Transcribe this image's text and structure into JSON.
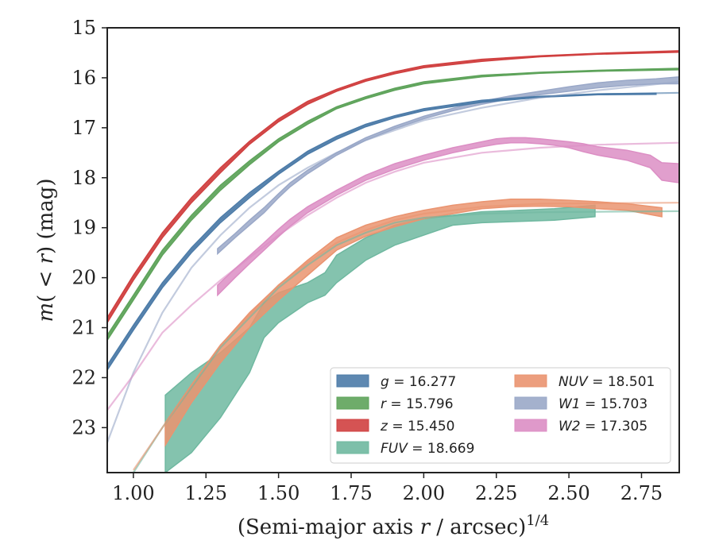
{
  "chart_data": {
    "type": "line",
    "xlabel": "(Semi-major axis r / arcsec)",
    "xlabel_parts": {
      "before": "(Semi-major axis ",
      "var": "r",
      "after": " / arcsec)",
      "sup": "1/4"
    },
    "ylabel": "m(< r) (mag)",
    "ylabel_parts": {
      "m": "m",
      "paren": "(",
      "lt": " < ",
      "r": "r",
      "close": ")",
      "unit": " (mag)"
    },
    "xlim": [
      0.91,
      2.88
    ],
    "ylim": [
      23.9,
      15.0
    ],
    "y_inverted": true,
    "xticks": [
      "1.00",
      "1.25",
      "1.50",
      "1.75",
      "2.00",
      "2.25",
      "2.50",
      "2.75"
    ],
    "xtick_values": [
      1.0,
      1.25,
      1.5,
      1.75,
      2.0,
      2.25,
      2.5,
      2.75
    ],
    "yticks": [
      "15",
      "16",
      "17",
      "18",
      "19",
      "20",
      "21",
      "22",
      "23"
    ],
    "ytick_values": [
      15,
      16,
      17,
      18,
      19,
      20,
      21,
      22,
      23
    ],
    "grid": false,
    "legend_position": "bottom-right",
    "series": [
      {
        "name": "g = 16.277",
        "var": "g",
        "value": "16.277",
        "color": "#4c7ba8",
        "model_x": [
          0.91,
          1.0,
          1.1,
          1.2,
          1.3,
          1.4,
          1.5,
          1.6,
          1.7,
          1.8,
          1.9,
          2.0,
          2.2,
          2.4,
          2.6,
          2.88
        ],
        "model_y": [
          21.8,
          21.0,
          20.15,
          19.45,
          18.85,
          18.35,
          17.9,
          17.5,
          17.2,
          16.95,
          16.78,
          16.64,
          16.47,
          16.38,
          16.33,
          16.3
        ],
        "band_x": [
          0.91,
          1.0,
          1.1,
          1.2,
          1.3,
          1.4,
          1.5,
          1.6,
          1.7,
          1.8,
          1.9,
          2.0,
          2.2,
          2.4,
          2.6,
          2.8
        ],
        "band_lo": [
          21.75,
          20.95,
          20.1,
          19.4,
          18.8,
          18.3,
          17.87,
          17.47,
          17.17,
          16.93,
          16.76,
          16.62,
          16.45,
          16.37,
          16.32,
          16.31
        ],
        "band_hi": [
          21.85,
          21.05,
          20.2,
          19.5,
          18.9,
          18.4,
          17.93,
          17.53,
          17.23,
          16.98,
          16.8,
          16.66,
          16.49,
          16.39,
          16.34,
          16.33
        ]
      },
      {
        "name": "r = 15.796",
        "var": "r",
        "value": "15.796",
        "color": "#5ea35a",
        "model_x": [
          0.91,
          1.0,
          1.1,
          1.2,
          1.3,
          1.4,
          1.5,
          1.6,
          1.7,
          1.8,
          1.9,
          2.0,
          2.2,
          2.4,
          2.6,
          2.88
        ],
        "model_y": [
          21.2,
          20.4,
          19.5,
          18.8,
          18.2,
          17.7,
          17.25,
          16.9,
          16.6,
          16.4,
          16.23,
          16.1,
          15.96,
          15.9,
          15.86,
          15.82
        ],
        "band_x": [
          0.91,
          1.0,
          1.1,
          1.2,
          1.3,
          1.4,
          1.5,
          1.6,
          1.7,
          1.8,
          1.9,
          2.0,
          2.2,
          2.4,
          2.6,
          2.88
        ],
        "band_lo": [
          21.15,
          20.35,
          19.45,
          18.75,
          18.15,
          17.66,
          17.22,
          16.87,
          16.58,
          16.38,
          16.21,
          16.08,
          15.95,
          15.89,
          15.85,
          15.81
        ],
        "band_hi": [
          21.25,
          20.45,
          19.55,
          18.85,
          18.25,
          17.74,
          17.28,
          16.93,
          16.62,
          16.42,
          16.25,
          16.12,
          15.98,
          15.91,
          15.87,
          15.84
        ]
      },
      {
        "name": "z = 15.450",
        "var": "z",
        "value": "15.450",
        "color": "#d04040",
        "model_x": [
          0.91,
          1.0,
          1.1,
          1.2,
          1.3,
          1.4,
          1.5,
          1.6,
          1.7,
          1.8,
          1.9,
          2.0,
          2.2,
          2.4,
          2.6,
          2.88
        ],
        "model_y": [
          20.85,
          20.0,
          19.15,
          18.45,
          17.85,
          17.3,
          16.85,
          16.5,
          16.25,
          16.05,
          15.9,
          15.78,
          15.65,
          15.57,
          15.52,
          15.47
        ],
        "band_x": [
          0.91,
          1.0,
          1.1,
          1.2,
          1.3,
          1.4,
          1.5,
          1.6,
          1.7,
          1.8,
          1.9,
          2.0,
          2.2,
          2.4,
          2.6,
          2.88
        ],
        "band_lo": [
          20.8,
          19.95,
          19.1,
          18.4,
          17.8,
          17.27,
          16.82,
          16.47,
          16.23,
          16.03,
          15.88,
          15.76,
          15.63,
          15.56,
          15.51,
          15.46
        ],
        "band_hi": [
          20.9,
          20.05,
          19.2,
          18.5,
          17.9,
          17.33,
          16.88,
          16.53,
          16.27,
          16.07,
          15.92,
          15.8,
          15.67,
          15.58,
          15.53,
          15.49
        ]
      },
      {
        "name": "FUV = 18.669",
        "var": "FUV",
        "value": "18.669",
        "color": "#6fb8a0",
        "model_x": [
          1.0,
          1.1,
          1.2,
          1.3,
          1.4,
          1.5,
          1.6,
          1.7,
          1.8,
          1.9,
          2.0,
          2.2,
          2.4,
          2.6,
          2.88
        ],
        "model_y": [
          23.9,
          23.0,
          22.2,
          21.4,
          20.8,
          20.2,
          19.75,
          19.35,
          19.1,
          18.9,
          18.8,
          18.72,
          18.69,
          18.68,
          18.67
        ],
        "band_x": [
          1.11,
          1.2,
          1.3,
          1.4,
          1.45,
          1.5,
          1.6,
          1.66,
          1.7,
          1.8,
          1.9,
          2.0,
          2.1,
          2.2,
          2.3,
          2.45,
          2.59
        ],
        "band_lo": [
          23.9,
          23.5,
          22.8,
          21.9,
          21.2,
          20.9,
          20.5,
          20.35,
          20.1,
          19.65,
          19.35,
          19.15,
          18.95,
          18.9,
          18.88,
          18.85,
          18.78
        ],
        "band_hi": [
          22.35,
          21.9,
          21.5,
          21.0,
          20.5,
          20.3,
          20.1,
          19.9,
          19.55,
          19.2,
          18.95,
          18.82,
          18.75,
          18.68,
          18.66,
          18.62,
          18.55
        ]
      },
      {
        "name": "NUV = 18.501",
        "var": "NUV",
        "value": "18.501",
        "color": "#ea9470",
        "model_x": [
          1.0,
          1.1,
          1.2,
          1.3,
          1.4,
          1.5,
          1.6,
          1.7,
          1.8,
          1.9,
          2.0,
          2.2,
          2.4,
          2.6,
          2.88
        ],
        "model_y": [
          23.85,
          23.0,
          22.15,
          21.35,
          20.75,
          20.15,
          19.7,
          19.3,
          19.05,
          18.85,
          18.72,
          18.58,
          18.52,
          18.51,
          18.5
        ],
        "band_x": [
          1.11,
          1.2,
          1.3,
          1.4,
          1.5,
          1.6,
          1.7,
          1.8,
          1.9,
          2.0,
          2.1,
          2.2,
          2.3,
          2.4,
          2.5,
          2.6,
          2.7,
          2.82
        ],
        "band_lo": [
          23.35,
          22.5,
          21.7,
          21.0,
          20.45,
          19.95,
          19.45,
          19.17,
          18.98,
          18.82,
          18.72,
          18.62,
          18.58,
          18.57,
          18.58,
          18.62,
          18.65,
          18.78
        ],
        "band_hi": [
          22.9,
          22.15,
          21.35,
          20.7,
          20.15,
          19.65,
          19.2,
          18.95,
          18.78,
          18.65,
          18.55,
          18.48,
          18.43,
          18.43,
          18.45,
          18.48,
          18.52,
          18.6
        ]
      },
      {
        "name": "W1 = 15.703",
        "var": "W1",
        "value": "15.703",
        "color": "#9aa8c8",
        "model_x": [
          0.91,
          1.0,
          1.1,
          1.2,
          1.3,
          1.4,
          1.5,
          1.6,
          1.7,
          1.8,
          1.9,
          2.0,
          2.2,
          2.4,
          2.6,
          2.88
        ],
        "model_y": [
          23.3,
          21.9,
          20.7,
          19.8,
          19.15,
          18.6,
          18.15,
          17.8,
          17.5,
          17.25,
          17.05,
          16.85,
          16.6,
          16.4,
          16.25,
          16.08
        ],
        "band_x": [
          1.29,
          1.35,
          1.4,
          1.45,
          1.5,
          1.54,
          1.6,
          1.7,
          1.8,
          1.9,
          2.0,
          2.1,
          2.2,
          2.3,
          2.4,
          2.5,
          2.6,
          2.7,
          2.8,
          2.88
        ],
        "band_lo": [
          19.52,
          19.2,
          18.95,
          18.7,
          18.4,
          18.18,
          17.92,
          17.55,
          17.25,
          17.02,
          16.82,
          16.66,
          16.53,
          16.42,
          16.34,
          16.27,
          16.2,
          16.15,
          16.12,
          16.12
        ],
        "band_hi": [
          19.42,
          19.12,
          18.85,
          18.6,
          18.32,
          18.1,
          17.85,
          17.5,
          17.2,
          16.97,
          16.77,
          16.61,
          16.47,
          16.36,
          16.27,
          16.18,
          16.1,
          16.05,
          16.02,
          15.98
        ]
      },
      {
        "name": "W2 = 17.305",
        "var": "W2",
        "value": "17.305",
        "color": "#dc8ec4",
        "model_x": [
          0.91,
          1.0,
          1.1,
          1.2,
          1.3,
          1.4,
          1.5,
          1.6,
          1.7,
          1.8,
          1.9,
          2.0,
          2.2,
          2.4,
          2.6,
          2.88
        ],
        "model_y": [
          22.65,
          21.95,
          21.1,
          20.55,
          20.05,
          19.6,
          19.15,
          18.75,
          18.4,
          18.1,
          17.88,
          17.7,
          17.5,
          17.4,
          17.34,
          17.3
        ],
        "band_x": [
          1.29,
          1.35,
          1.4,
          1.45,
          1.5,
          1.54,
          1.6,
          1.7,
          1.8,
          1.9,
          2.0,
          2.1,
          2.2,
          2.25,
          2.3,
          2.35,
          2.4,
          2.45,
          2.5,
          2.55,
          2.6,
          2.7,
          2.78,
          2.82,
          2.88
        ],
        "band_lo": [
          20.35,
          20.0,
          19.72,
          19.45,
          19.18,
          18.97,
          18.7,
          18.35,
          18.05,
          17.83,
          17.65,
          17.5,
          17.38,
          17.33,
          17.3,
          17.3,
          17.32,
          17.35,
          17.4,
          17.48,
          17.55,
          17.65,
          17.8,
          18.05,
          18.1
        ],
        "band_hi": [
          20.15,
          19.82,
          19.56,
          19.3,
          19.03,
          18.83,
          18.58,
          18.25,
          17.95,
          17.72,
          17.55,
          17.4,
          17.28,
          17.22,
          17.2,
          17.2,
          17.22,
          17.25,
          17.28,
          17.32,
          17.38,
          17.45,
          17.55,
          17.7,
          17.72
        ]
      }
    ]
  }
}
